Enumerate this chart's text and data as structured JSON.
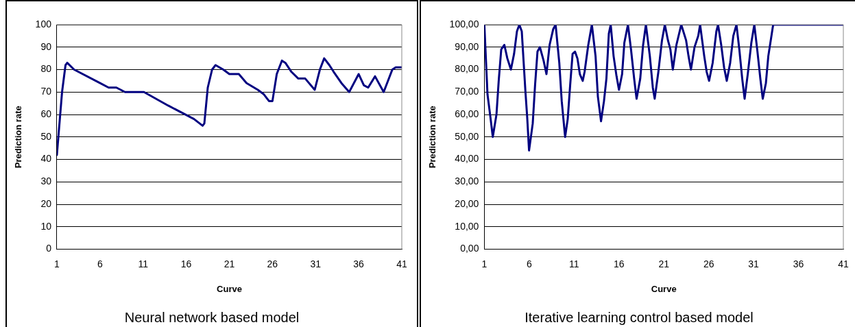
{
  "chart_data": [
    {
      "type": "line",
      "xlabel": "Curve",
      "ylabel": "Prediction rate",
      "annotations": [
        "Neural network based model"
      ],
      "grid": "y",
      "marker": "none",
      "line_style": "solid",
      "legend": false,
      "xlim": [
        1,
        41
      ],
      "xticks": [
        1,
        6,
        11,
        16,
        21,
        26,
        31,
        36,
        41
      ],
      "ylim": [
        0,
        100
      ],
      "yticks": [
        0,
        10,
        20,
        30,
        40,
        50,
        60,
        70,
        80,
        90,
        100
      ],
      "x": [
        1,
        1.6,
        2,
        2.2,
        3,
        6,
        7,
        7.9,
        8.9,
        11.1,
        13.9,
        16.9,
        17.9,
        18.1,
        18.5,
        19,
        19.4,
        20.3,
        21,
        22.1,
        23,
        24.3,
        25,
        25.6,
        26,
        26.5,
        27.1,
        27.5,
        28.2,
        29,
        29.8,
        30.9,
        31.5,
        32,
        32.6,
        33.1,
        34,
        34.9,
        36,
        36.6,
        37.1,
        37.9,
        38.9,
        39.9,
        40.3,
        41
      ],
      "series": [
        {
          "color": "#000080",
          "values": [
            42,
            70,
            82,
            83,
            80,
            74,
            72,
            72,
            70,
            70,
            64,
            58,
            55,
            56,
            72,
            80,
            82,
            80,
            78,
            78,
            74,
            71,
            69,
            66,
            66,
            78,
            84,
            83,
            79,
            76,
            76,
            71,
            80,
            85,
            82,
            79,
            74,
            70,
            78,
            73,
            72,
            77,
            70,
            80,
            81,
            81
          ]
        }
      ]
    },
    {
      "type": "line",
      "xlabel": "Curve",
      "ylabel": "Prediction rate",
      "annotations": [
        "Iterative learning control based model"
      ],
      "grid": "y",
      "marker": "none",
      "line_style": "solid",
      "legend": false,
      "xlim": [
        1,
        41
      ],
      "xticks": [
        1,
        6,
        11,
        16,
        21,
        26,
        31,
        36,
        41
      ],
      "ylim": [
        0,
        100
      ],
      "yticks": [
        {
          "value": 0,
          "label": "0,00"
        },
        {
          "value": 10,
          "label": "10,00"
        },
        {
          "value": 20,
          "label": "20,00"
        },
        {
          "value": 30,
          "label": "30,00"
        },
        {
          "value": 40,
          "label": "40,00"
        },
        {
          "value": 50,
          "label": "50,00"
        },
        {
          "value": 60,
          "label": "60,00"
        },
        {
          "value": 70,
          "label": "70,00"
        },
        {
          "value": 80,
          "label": "80,00"
        },
        {
          "value": 90,
          "label": "90,00"
        },
        {
          "value": 100,
          "label": "100,00"
        }
      ],
      "x": [
        1,
        1.35,
        1.67,
        1.94,
        2.35,
        2.6,
        2.88,
        3.23,
        3.56,
        3.96,
        4.31,
        4.63,
        4.9,
        5.17,
        5.58,
        5.77,
        5.98,
        6.39,
        6.65,
        6.92,
        7.19,
        7.6,
        7.92,
        8.27,
        8.67,
        8.94,
        9.35,
        9.62,
        10,
        10.29,
        10.56,
        10.83,
        11.1,
        11.37,
        11.64,
        11.96,
        12.17,
        12.58,
        12.98,
        13.39,
        13.65,
        14,
        14.33,
        14.6,
        14.87,
        15.08,
        15.4,
        15.73,
        16,
        16.35,
        16.6,
        17,
        17.34,
        17.69,
        17.96,
        18.37,
        18.69,
        19,
        19.44,
        19.77,
        19.98,
        20.39,
        20.79,
        21.11,
        21.46,
        21.73,
        22,
        22.4,
        22.94,
        23.48,
        23.75,
        24.02,
        24.42,
        24.83,
        25.04,
        25.5,
        25.77,
        26.04,
        26.44,
        26.85,
        27.04,
        27.39,
        27.71,
        28.01,
        28.39,
        28.74,
        29.09,
        29.41,
        29.73,
        30,
        30.35,
        30.75,
        31.08,
        31.43,
        31.75,
        32.02,
        32.37,
        32.64,
        32.91,
        33.18,
        33.85,
        41
      ],
      "series": [
        {
          "color": "#000080",
          "values": [
            100,
            69,
            59,
            50,
            60,
            75,
            89,
            91,
            85,
            80,
            87,
            97,
            100,
            97,
            70,
            59,
            44,
            56,
            73,
            88,
            90,
            84,
            78,
            91,
            98,
            100,
            83,
            66,
            50,
            58,
            73,
            87,
            88,
            85,
            78,
            75,
            79,
            91,
            100,
            86,
            68,
            57,
            66,
            76,
            96,
            100,
            86,
            77,
            71,
            78,
            92,
            100,
            89,
            76,
            67,
            76,
            91,
            100,
            86,
            72,
            67,
            79,
            93,
            100,
            93,
            89,
            80,
            91,
            100,
            93,
            86,
            80,
            90,
            95,
            100,
            86,
            79,
            75,
            83,
            97,
            100,
            91,
            81,
            75,
            83,
            95,
            100,
            89,
            76,
            67,
            78,
            92,
            100,
            88,
            76,
            67,
            74,
            86,
            93,
            100,
            100,
            100
          ]
        }
      ]
    }
  ]
}
